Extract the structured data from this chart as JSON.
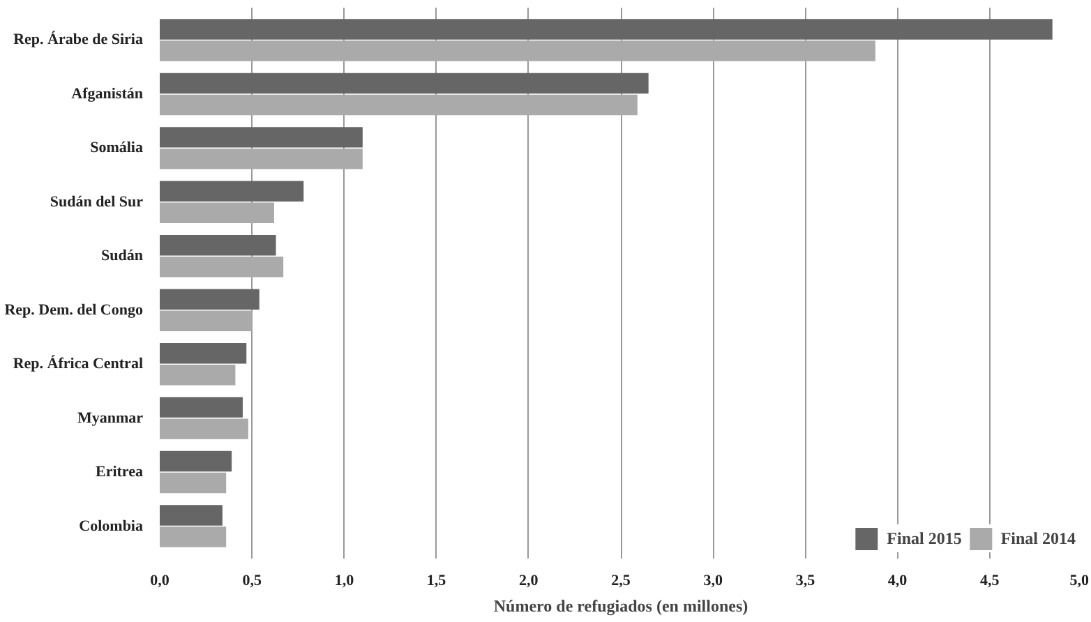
{
  "chart_data": {
    "type": "bar",
    "orientation": "horizontal",
    "xlabel": "Número de refugiados (en millones)",
    "categories": [
      "Rep. Árabe de Siria",
      "Afganistán",
      "Somália",
      "Sudán del Sur",
      "Sudán",
      "Rep. Dem. del Congo",
      "Rep. África Central",
      "Myanmar",
      "Eritrea",
      "Colombia"
    ],
    "series": [
      {
        "name": "Final 2015",
        "color": "#666666",
        "values": [
          4.84,
          2.65,
          1.1,
          0.78,
          0.63,
          0.54,
          0.47,
          0.45,
          0.39,
          0.34
        ]
      },
      {
        "name": "Final 2014",
        "color": "#aaaaaa",
        "values": [
          3.88,
          2.59,
          1.1,
          0.62,
          0.67,
          0.5,
          0.41,
          0.48,
          0.36,
          0.36
        ]
      }
    ],
    "xlim": [
      0,
      5
    ],
    "xticks": [
      {
        "value": 0,
        "label": "0,0"
      },
      {
        "value": 0.5,
        "label": "0,5"
      },
      {
        "value": 1,
        "label": "1,0"
      },
      {
        "value": 1.5,
        "label": "1,5"
      },
      {
        "value": 2,
        "label": "2,0"
      },
      {
        "value": 2.5,
        "label": "2,5"
      },
      {
        "value": 3,
        "label": "3,0"
      },
      {
        "value": 3.5,
        "label": "3,5"
      },
      {
        "value": 4,
        "label": "4,0"
      },
      {
        "value": 4.5,
        "label": "4,5"
      },
      {
        "value": 5,
        "label": "5,0"
      }
    ],
    "grid": "x",
    "legend": "bottom right"
  }
}
